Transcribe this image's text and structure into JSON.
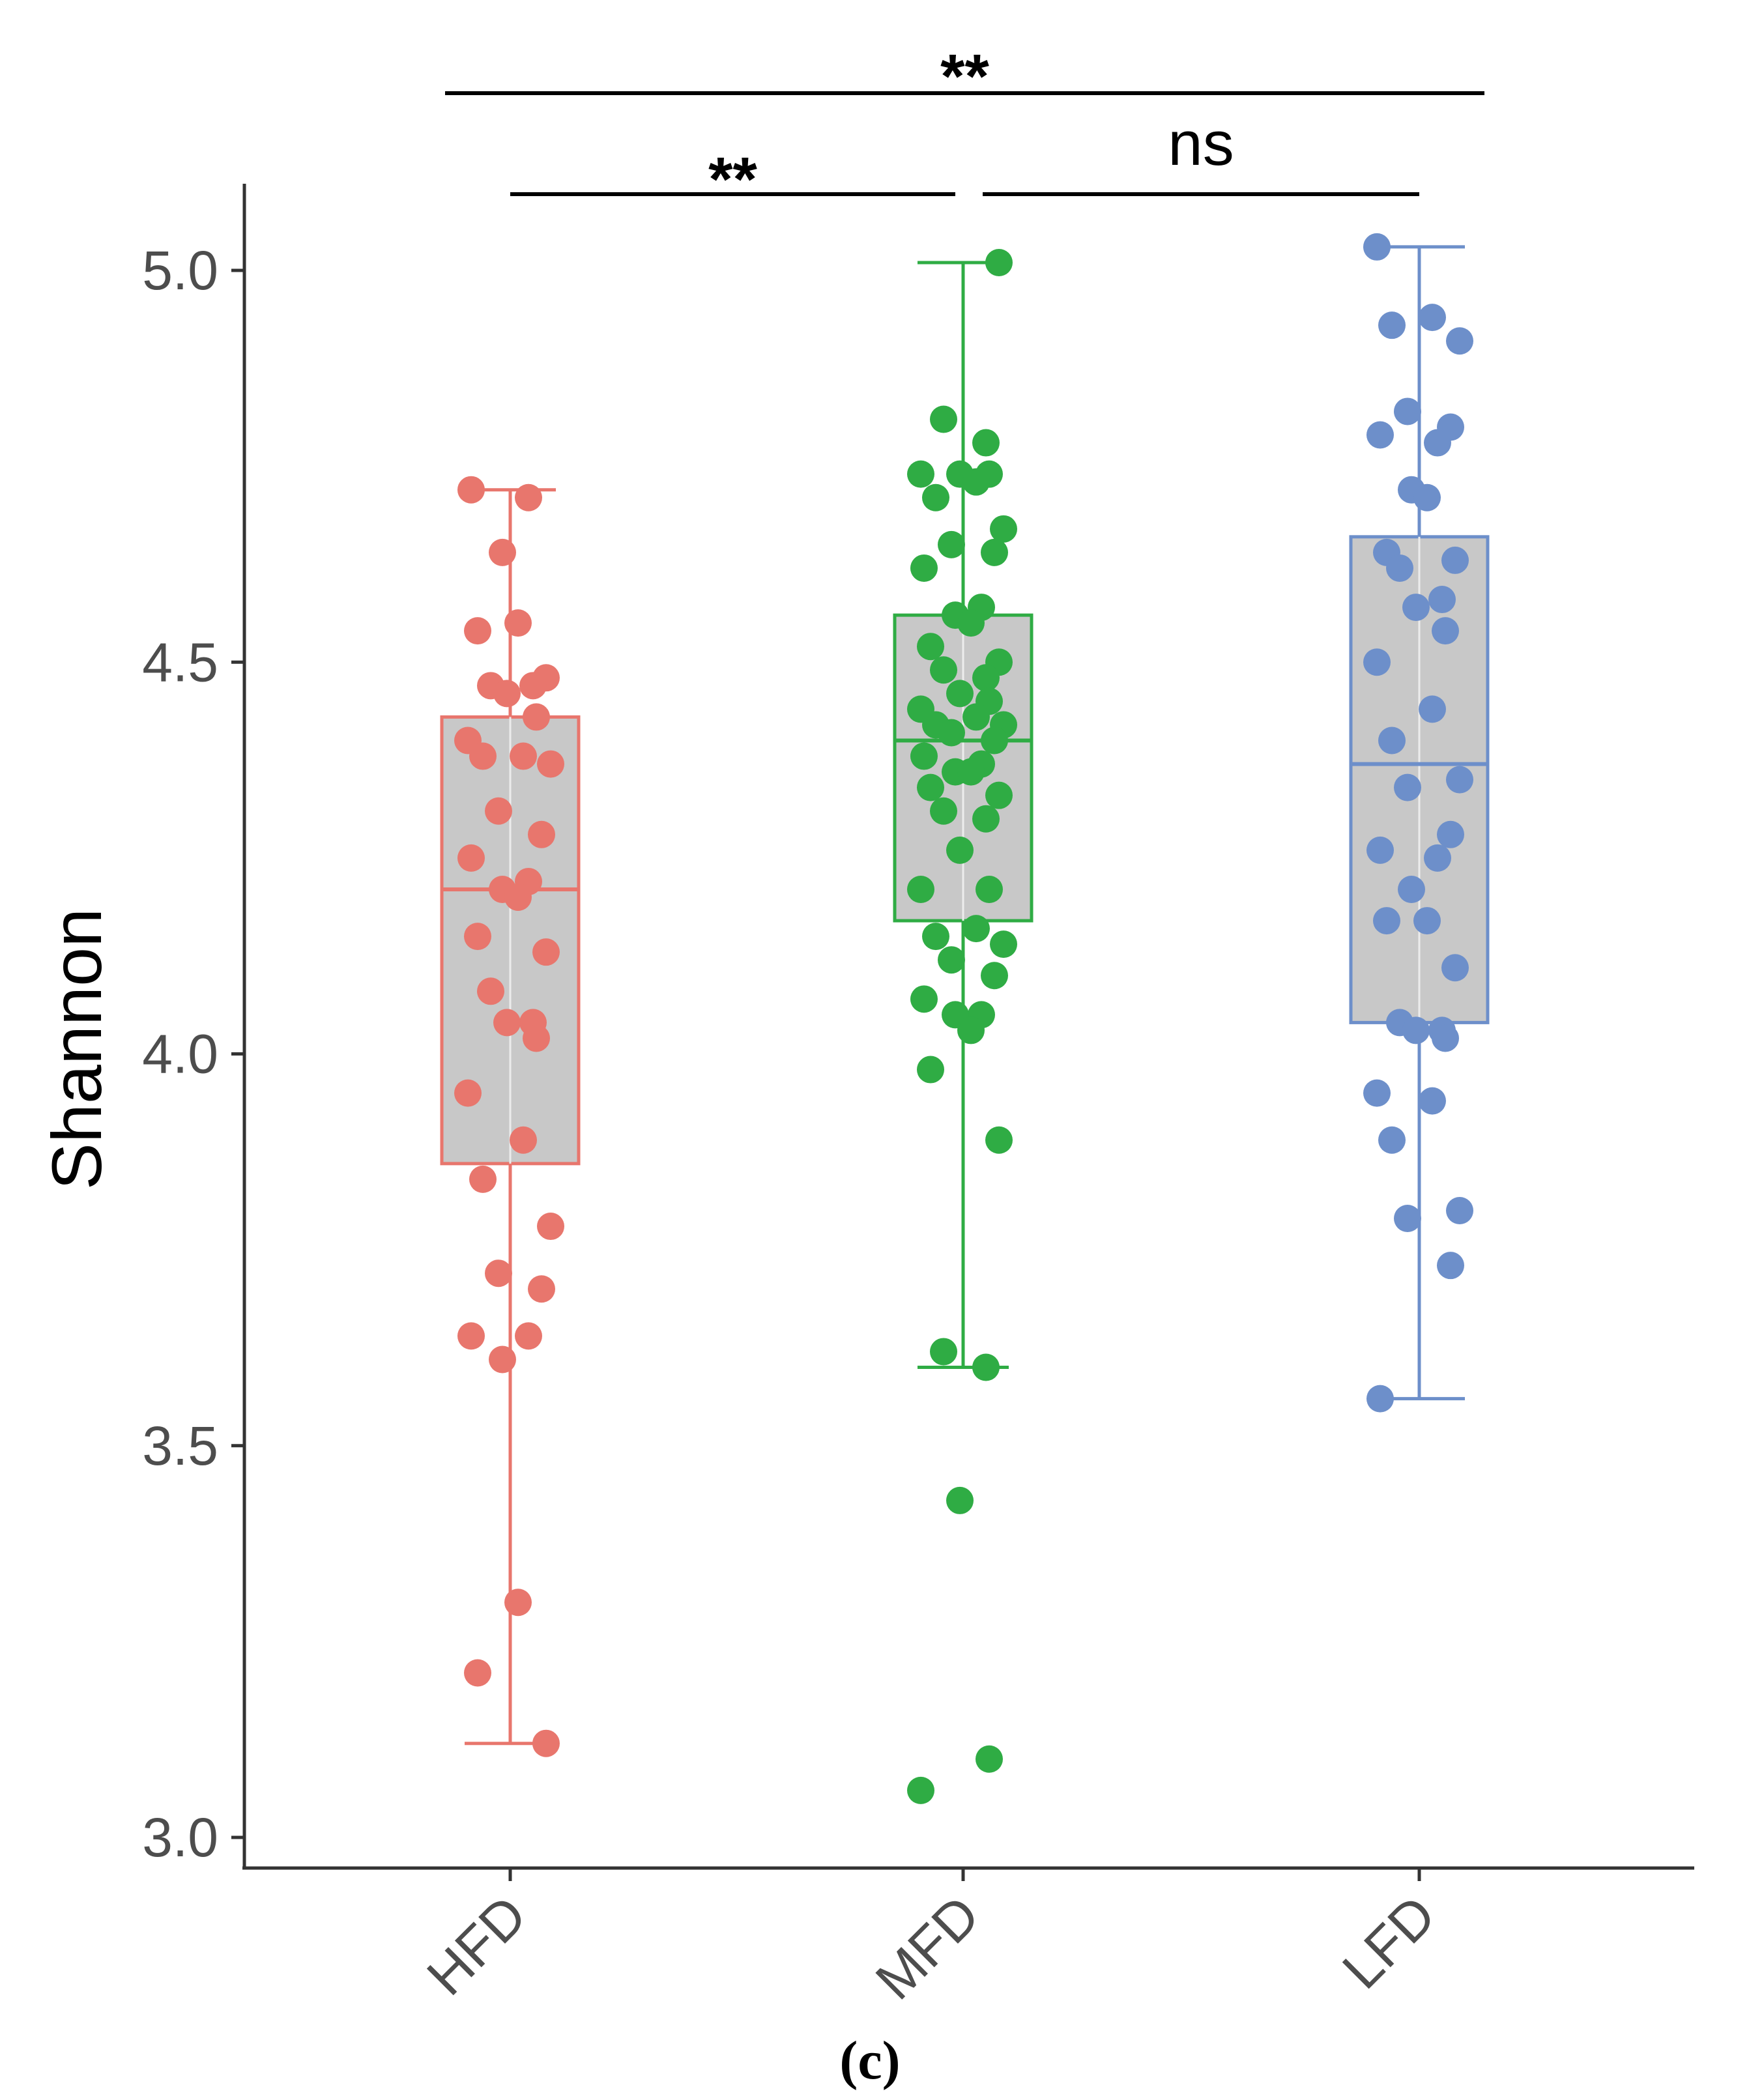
{
  "chart_data": {
    "type": "box",
    "ylabel": "Shannon",
    "xlabel": "",
    "caption": "(c)",
    "ylim": [
      2.96,
      5.12
    ],
    "yticks": [
      3.0,
      3.5,
      4.0,
      4.5,
      5.0
    ],
    "ytick_labels": [
      "3.0",
      "3.5",
      "4.0",
      "4.5",
      "5.0"
    ],
    "categories": [
      "HFD",
      "MFD",
      "LFD"
    ],
    "colors": {
      "HFD": "#e8766d",
      "MFD": "#2fac44",
      "LFD": "#6d8fca"
    },
    "box_fill": "#c8c8c8",
    "series": [
      {
        "name": "HFD",
        "whisker_low": 3.12,
        "q1": 3.86,
        "median": 4.21,
        "q3": 4.43,
        "whisker_high": 4.72,
        "points": [
          4.72,
          4.71,
          4.64,
          4.55,
          4.54,
          4.48,
          4.47,
          4.47,
          4.46,
          4.43,
          4.4,
          4.38,
          4.38,
          4.37,
          4.31,
          4.28,
          4.25,
          4.22,
          4.21,
          4.2,
          4.15,
          4.13,
          4.08,
          4.04,
          4.04,
          4.02,
          3.95,
          3.89,
          3.84,
          3.78,
          3.72,
          3.7,
          3.64,
          3.64,
          3.61,
          3.3,
          3.21,
          3.12
        ]
      },
      {
        "name": "MFD",
        "whisker_low": 3.6,
        "q1": 4.17,
        "median": 4.4,
        "q3": 4.56,
        "whisker_high": 5.01,
        "points": [
          5.01,
          4.81,
          4.78,
          4.74,
          4.74,
          4.74,
          4.73,
          4.71,
          4.67,
          4.65,
          4.64,
          4.62,
          4.57,
          4.56,
          4.55,
          4.52,
          4.5,
          4.49,
          4.48,
          4.46,
          4.45,
          4.44,
          4.43,
          4.42,
          4.42,
          4.41,
          4.4,
          4.38,
          4.37,
          4.36,
          4.36,
          4.34,
          4.33,
          4.31,
          4.3,
          4.26,
          4.21,
          4.21,
          4.16,
          4.15,
          4.14,
          4.12,
          4.1,
          4.07,
          4.05,
          4.05,
          4.03,
          3.98,
          3.89,
          3.62,
          3.6,
          3.43,
          3.1,
          3.06
        ]
      },
      {
        "name": "LFD",
        "whisker_low": 3.56,
        "q1": 4.04,
        "median": 4.37,
        "q3": 4.66,
        "whisker_high": 5.03,
        "points": [
          5.03,
          4.94,
          4.93,
          4.91,
          4.82,
          4.8,
          4.79,
          4.78,
          4.72,
          4.71,
          4.64,
          4.63,
          4.62,
          4.58,
          4.57,
          4.54,
          4.5,
          4.44,
          4.4,
          4.35,
          4.34,
          4.28,
          4.26,
          4.25,
          4.21,
          4.17,
          4.17,
          4.11,
          4.04,
          4.03,
          4.03,
          4.02,
          3.95,
          3.94,
          3.89,
          3.8,
          3.79,
          3.73,
          3.56
        ]
      }
    ],
    "significance": [
      {
        "from": "HFD",
        "to": "MFD",
        "label": "**"
      },
      {
        "from": "MFD",
        "to": "LFD",
        "label": "ns"
      },
      {
        "from": "HFD",
        "to": "LFD",
        "label": "**"
      }
    ]
  }
}
